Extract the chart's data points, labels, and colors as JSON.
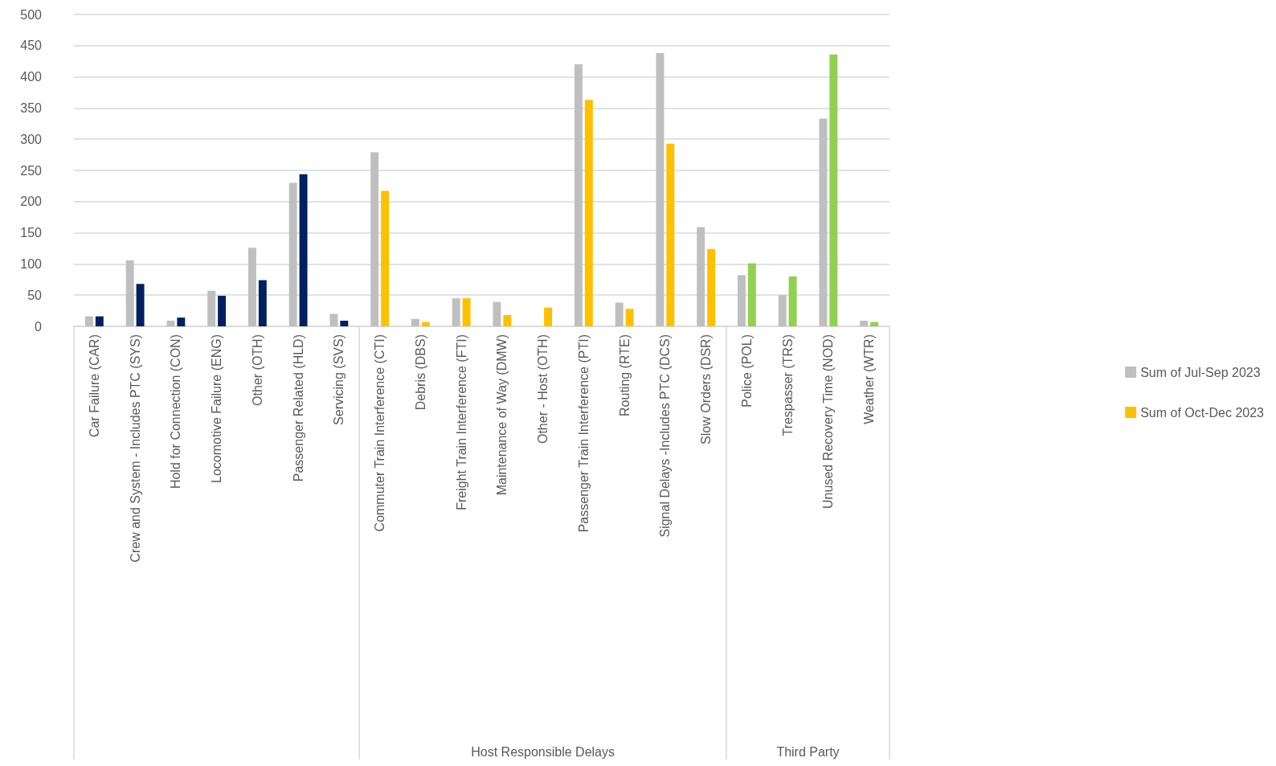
{
  "chart_data": {
    "type": "bar",
    "categories": [
      "Car Failure (CAR)",
      "Crew and System - Includes PTC (SYS)",
      "Hold for Connection (CON)",
      "Locomotive Failure (ENG)",
      "Other (OTH)",
      "Passenger Related (HLD)",
      "Servicing (SVS)",
      "Commuter Train Interference (CTI)",
      "Debris (DBS)",
      "Freight Train Interference (FTI)",
      "Maintenance of Way (DMW)",
      "Other - Host (OTH)",
      "Passenger Train Interference (PTI)",
      "Routing (RTE)",
      "Signal Delays -Includes PTC (DCS)",
      "Slow Orders (DSR)",
      "Police (POL)",
      "Trespasser (TRS)",
      "Unused Recovery Time (NOD)",
      "Weather (WTR)"
    ],
    "series": [
      {
        "name": "Sum of Jul-Sep 2023",
        "color": "#bfbfbf",
        "values": [
          16,
          106,
          9,
          57,
          126,
          230,
          20,
          279,
          12,
          45,
          39,
          null,
          420,
          38,
          438,
          159,
          82,
          50,
          333,
          9
        ]
      },
      {
        "name": "Sum of Oct-Dec 2023",
        "color": "#ffc000",
        "colors": [
          "#002060",
          "#002060",
          "#002060",
          "#002060",
          "#002060",
          "#002060",
          "#002060",
          "#ffc000",
          "#ffc000",
          "#ffc000",
          "#ffc000",
          "#ffc000",
          "#ffc000",
          "#ffc000",
          "#ffc000",
          "#ffc000",
          "#92d050",
          "#92d050",
          "#92d050",
          "#92d050"
        ],
        "values": [
          16,
          68,
          14,
          49,
          74,
          244,
          9,
          217,
          7,
          45,
          18,
          30,
          363,
          28,
          293,
          124,
          101,
          80,
          436,
          7
        ]
      }
    ],
    "annotations": [
      "Host Responsible Delays",
      "Third Party"
    ],
    "ylim": [
      0,
      500
    ],
    "yticks": [
      0,
      50,
      100,
      150,
      200,
      250,
      300,
      350,
      400,
      450,
      500
    ],
    "grid": "y",
    "legend": "right"
  }
}
